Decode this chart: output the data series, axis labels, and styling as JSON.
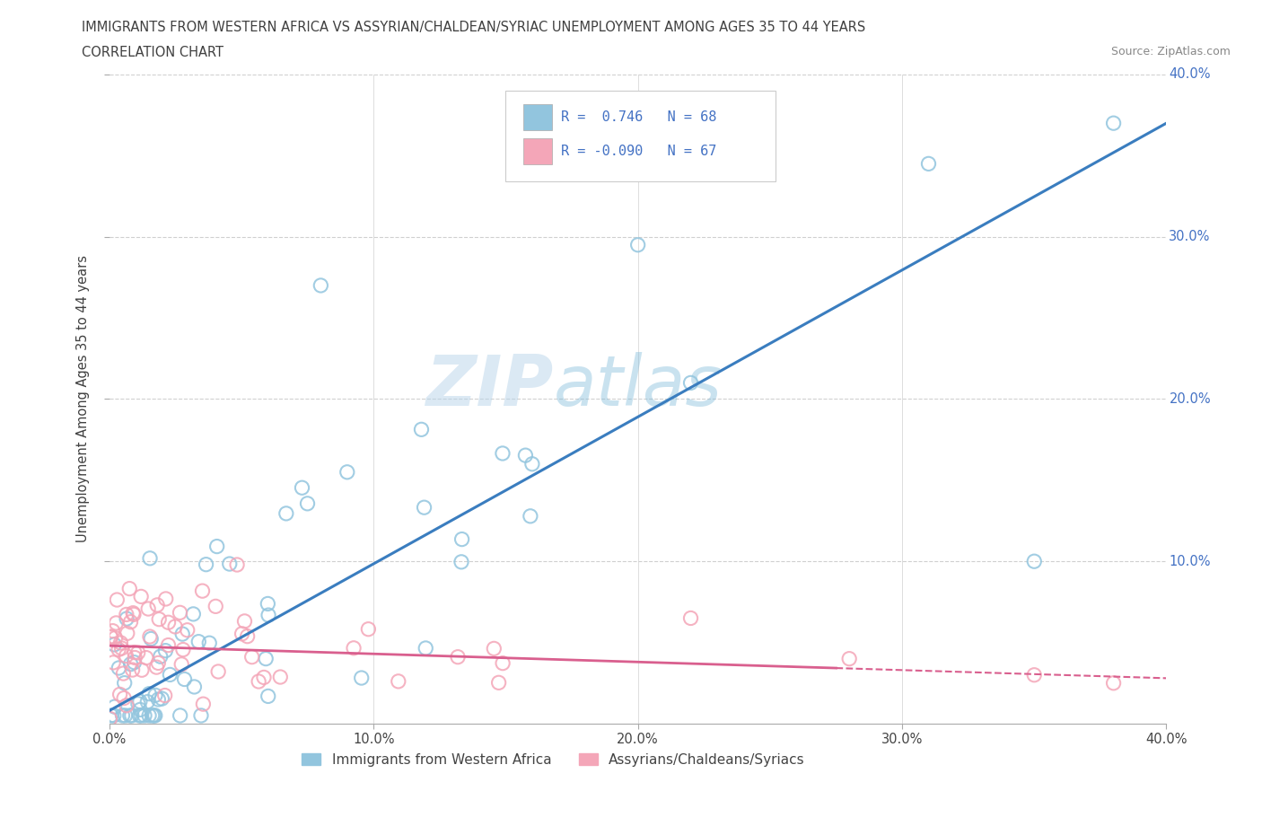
{
  "title_line1": "IMMIGRANTS FROM WESTERN AFRICA VS ASSYRIAN/CHALDEAN/SYRIAC UNEMPLOYMENT AMONG AGES 35 TO 44 YEARS",
  "title_line2": "CORRELATION CHART",
  "source_text": "Source: ZipAtlas.com",
  "ylabel": "Unemployment Among Ages 35 to 44 years",
  "watermark_part1": "ZIP",
  "watermark_part2": "atlas",
  "legend_label_blue": "Immigrants from Western Africa",
  "legend_label_pink": "Assyrians/Chaldeans/Syriacs",
  "R_blue": 0.746,
  "N_blue": 68,
  "R_pink": -0.09,
  "N_pink": 67,
  "xlim": [
    0.0,
    0.4
  ],
  "ylim": [
    0.0,
    0.4
  ],
  "color_blue": "#92c5de",
  "color_pink": "#f4a6b8",
  "line_color_blue": "#3a7dbf",
  "line_color_pink": "#d95f8e",
  "background_color": "#ffffff",
  "grid_color": "#d0d0d0",
  "tick_color_blue": "#4472c4",
  "title_color": "#404040",
  "ylabel_color": "#404040",
  "source_color": "#888888"
}
